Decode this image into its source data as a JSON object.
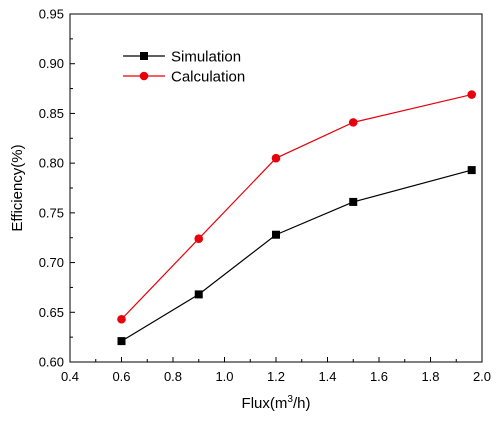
{
  "chart_data": {
    "type": "line",
    "xlabel_main": "Flux(m",
    "xlabel_sup": "3",
    "xlabel_end": "/h)",
    "ylabel": "Efficiency(%)",
    "xlim": [
      0.4,
      2.0
    ],
    "ylim": [
      0.6,
      0.95
    ],
    "xticks": [
      0.4,
      0.6,
      0.8,
      1.0,
      1.2,
      1.4,
      1.6,
      1.8,
      2.0
    ],
    "yticks": [
      0.6,
      0.65,
      0.7,
      0.75,
      0.8,
      0.85,
      0.9,
      0.95
    ],
    "grid": false,
    "legend_position": "top-left",
    "series": [
      {
        "name": "Simulation",
        "color": "#000000",
        "marker": "square",
        "x": [
          0.6,
          0.9,
          1.2,
          1.5,
          1.96
        ],
        "y": [
          0.621,
          0.668,
          0.728,
          0.761,
          0.793
        ]
      },
      {
        "name": "Calculation",
        "color": "#e8000b",
        "marker": "circle",
        "x": [
          0.6,
          0.9,
          1.2,
          1.5,
          1.96
        ],
        "y": [
          0.643,
          0.724,
          0.805,
          0.841,
          0.869
        ]
      }
    ]
  }
}
